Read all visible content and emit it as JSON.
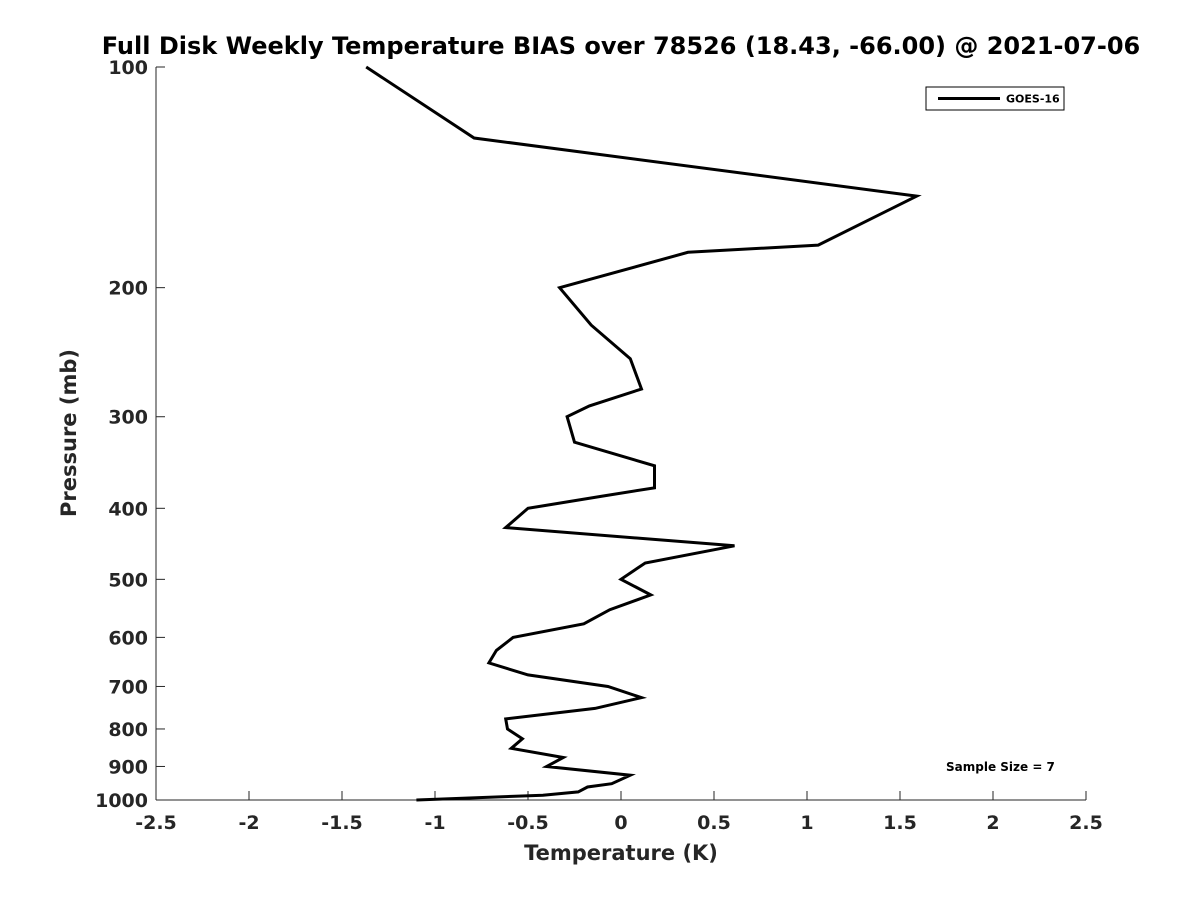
{
  "chart_data": {
    "type": "line",
    "title": "Full Disk Weekly Temperature BIAS over 78526 (18.43, -66.00) @ 2021-07-06",
    "xlabel": "Temperature (K)",
    "ylabel": "Pressure (mb)",
    "xlim": [
      -2.5,
      2.5
    ],
    "ylim": [
      100,
      1000
    ],
    "yscale": "log",
    "yreversed": true,
    "grid": false,
    "legend_position": "top-right",
    "xticks": [
      "-2.5",
      "-2",
      "-1.5",
      "-1",
      "-0.5",
      "0",
      "0.5",
      "1",
      "1.5",
      "2",
      "2.5"
    ],
    "xtick_values": [
      -2.5,
      -2,
      -1.5,
      -1,
      -0.5,
      0,
      0.5,
      1,
      1.5,
      2,
      2.5
    ],
    "yticks": [
      "100",
      "200",
      "300",
      "400",
      "500",
      "600",
      "700",
      "800",
      "900",
      "1000"
    ],
    "ytick_values": [
      100,
      200,
      300,
      400,
      500,
      600,
      700,
      800,
      900,
      1000
    ],
    "series": [
      {
        "name": "GOES-16",
        "color": "#000000",
        "points": [
          {
            "x": -1.37,
            "p": 100
          },
          {
            "x": -0.79,
            "p": 125
          },
          {
            "x": 1.59,
            "p": 150
          },
          {
            "x": 1.06,
            "p": 175
          },
          {
            "x": 0.36,
            "p": 179
          },
          {
            "x": -0.33,
            "p": 200
          },
          {
            "x": -0.16,
            "p": 225
          },
          {
            "x": 0.05,
            "p": 250
          },
          {
            "x": 0.11,
            "p": 275
          },
          {
            "x": -0.17,
            "p": 290
          },
          {
            "x": -0.29,
            "p": 300
          },
          {
            "x": -0.25,
            "p": 325
          },
          {
            "x": 0.18,
            "p": 350
          },
          {
            "x": 0.18,
            "p": 375
          },
          {
            "x": -0.1,
            "p": 385
          },
          {
            "x": -0.5,
            "p": 400
          },
          {
            "x": -0.62,
            "p": 425
          },
          {
            "x": 0.61,
            "p": 450
          },
          {
            "x": 0.13,
            "p": 475
          },
          {
            "x": 0.0,
            "p": 500
          },
          {
            "x": 0.16,
            "p": 525
          },
          {
            "x": -0.06,
            "p": 550
          },
          {
            "x": -0.2,
            "p": 575
          },
          {
            "x": -0.58,
            "p": 600
          },
          {
            "x": -0.67,
            "p": 625
          },
          {
            "x": -0.71,
            "p": 650
          },
          {
            "x": -0.5,
            "p": 675
          },
          {
            "x": -0.07,
            "p": 700
          },
          {
            "x": 0.11,
            "p": 725
          },
          {
            "x": -0.14,
            "p": 750
          },
          {
            "x": -0.62,
            "p": 775
          },
          {
            "x": -0.61,
            "p": 800
          },
          {
            "x": -0.53,
            "p": 825
          },
          {
            "x": -0.59,
            "p": 850
          },
          {
            "x": -0.31,
            "p": 875
          },
          {
            "x": -0.4,
            "p": 900
          },
          {
            "x": 0.05,
            "p": 925
          },
          {
            "x": -0.05,
            "p": 950
          },
          {
            "x": -0.18,
            "p": 960
          },
          {
            "x": -0.23,
            "p": 975
          },
          {
            "x": -0.42,
            "p": 985
          },
          {
            "x": -1.1,
            "p": 1000
          }
        ]
      }
    ],
    "annotations": [
      {
        "text": "Sample Size = 7",
        "position": "bottom-right"
      }
    ]
  }
}
